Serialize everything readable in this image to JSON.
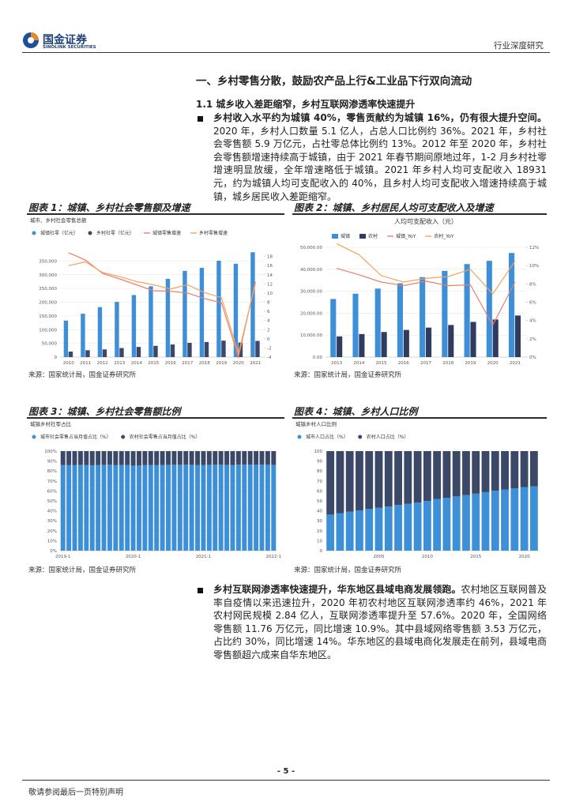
{
  "header": {
    "brand": "国金证券",
    "brand_en": "SINOLINK SECURITIES",
    "report_type": "行业深度研究"
  },
  "section_title": "一、乡村零售分散，鼓励农产品上行&工业品下行双向流动",
  "subsection_title": "1.1 城乡收入差距缩窄，乡村互联网渗透率快速提升",
  "paragraphs": [
    {
      "lead": "乡村收入水平约为城镇 40%，零售贡献约为城镇 16%，仍有很大提升空间。",
      "body": "2020 年，乡村人口数量 5.1 亿人，占总人口比例约 36%。2021 年，乡村社会零售额 5.9 万亿元，占社零总体比例约 13%。2012 年至 2020 年，乡村社会零售额增速持续高于城镇，由于 2021 年春节期间原地过年，1-2 月乡村社零增速明显放缓，全年增速略低于城镇。2021 年乡村人均可支配收入 18931 元，约为城镇人均可支配收入的 40%，且乡村人均可支配收入增速持续高于城镇，城乡居民收入差距缩窄。"
    },
    {
      "lead": "乡村互联网渗透率快速提升，华东地区县域电商发展领跑。",
      "body": "农村地区互联网普及率自疫情以来迅速拉升，2020 年初农村地区互联网渗透率约 46%，2021 年农村网民规模 2.84 亿人，互联网渗透率提升至 57.6%。2020 年，全国网络零售额 11.76 万亿元，同比增速 10.9%。其中县域网络零售额 3.53 万亿元，占比约 30%，同比增速 14%。华东地区的县域电商化发展走在前列，县域电商零售额超六成来自华东地区。"
    }
  ],
  "figures": [
    {
      "title": "图表 1：城镇、乡村社会零售额及增速",
      "source": "来源：国家统计局，国金证券研究所",
      "chart": {
        "type": "bar",
        "subtitle": "城市、乡村社会零售总额",
        "grid": true,
        "categories": [
          "2010",
          "2011",
          "2012",
          "2013",
          "2014",
          "2015",
          "2016",
          "2017",
          "2018",
          "2019",
          "2020",
          "2021"
        ],
        "ylim": [
          0,
          400000
        ],
        "yticks": [
          0,
          {
            "value": 50000,
            "label": "50,000"
          },
          {
            "value": 100000,
            "label": "100,000"
          },
          {
            "value": 150000,
            "label": "150,000"
          },
          {
            "value": 200000,
            "label": "200,000"
          },
          {
            "value": 250000,
            "label": "250,000"
          },
          {
            "value": 300000,
            "label": "300,000"
          },
          {
            "value": 350000,
            "label": "350,000"
          }
        ],
        "y2lim": [
          -4,
          20
        ],
        "y2ticks": [
          -4,
          -2,
          0,
          2,
          4,
          6,
          8,
          10,
          12,
          14,
          16,
          18
        ],
        "series": [
          {
            "name": "城镇社零（亿元）",
            "color": "#3d8fd8",
            "values": [
              133000,
              158000,
              182000,
              201000,
              226000,
              258000,
              285000,
              314000,
              325000,
              351000,
              340000,
              382000
            ]
          },
          {
            "name": "乡村社零（亿元）",
            "color": "#3b4868",
            "values": [
              20000,
              25000,
              28000,
              33000,
              37000,
              41000,
              46000,
              52000,
              55000,
              60000,
              53000,
              59000
            ]
          },
          {
            "name": "城镇零售增速",
            "color": "#ef7d6d",
            "type": "line",
            "axis": "y2",
            "values": [
              18.8,
              17.2,
              14.3,
              13.1,
              11.8,
              10.5,
              10.4,
              10.0,
              8.8,
              7.9,
              -4.0,
              12.5
            ]
          },
          {
            "name": "乡村零售增速",
            "color": "#f5a35a",
            "type": "line",
            "axis": "y2",
            "values": [
              16.0,
              16.8,
              14.5,
              13.6,
              12.5,
              11.8,
              10.9,
              11.8,
              10.1,
              9.0,
              -3.2,
              12.1
            ]
          }
        ]
      }
    },
    {
      "title": "图表 2：城镇、乡村居民人均可支配收入及增速",
      "source": "来源：国家统计局，国金证券研究所",
      "chart": {
        "type": "bar",
        "heading": "人均可支配收入（元）",
        "grid": true,
        "categories": [
          "2013",
          "2014",
          "2015",
          "2016",
          "2017",
          "2018",
          "2019",
          "2020",
          "2021"
        ],
        "ylim": [
          0,
          50000
        ],
        "yticks": [
          {
            "value": 0,
            "label": "0.00"
          },
          {
            "value": 10000,
            "label": "10,000.00"
          },
          {
            "value": 20000,
            "label": "20,000.00"
          },
          {
            "value": 30000,
            "label": "30,000.00"
          },
          {
            "value": 40000,
            "label": "40,000.00"
          },
          {
            "value": 50000,
            "label": "50,000.00"
          }
        ],
        "y2lim": [
          0,
          12
        ],
        "y2ticks": [
          {
            "value": 0,
            "label": "0%"
          },
          {
            "value": 2,
            "label": "2%"
          },
          {
            "value": 4,
            "label": "4%"
          },
          {
            "value": 6,
            "label": "6%"
          },
          {
            "value": 8,
            "label": "8%"
          },
          {
            "value": 10,
            "label": "10%"
          },
          {
            "value": 12,
            "label": "12%"
          }
        ],
        "series": [
          {
            "name": "城镇",
            "color": "#3d8fd8",
            "values": [
              26467,
              28844,
              31195,
              33616,
              36396,
              39251,
              42359,
              43834,
              47412
            ]
          },
          {
            "name": "农村",
            "color": "#2f3c5f",
            "values": [
              9430,
              10489,
              11422,
              12363,
              13432,
              14617,
              16021,
              17131,
              18931
            ]
          },
          {
            "name": "城镇_YoY",
            "color": "#ef7d6d",
            "type": "line",
            "axis": "y2",
            "values": [
              9.7,
              9.0,
              8.2,
              7.8,
              8.3,
              7.8,
              7.9,
              3.5,
              8.2
            ]
          },
          {
            "name": "农村_YoY",
            "color": "#f5a35a",
            "type": "line",
            "axis": "y2",
            "values": [
              12.4,
              11.2,
              8.9,
              8.2,
              8.6,
              8.8,
              9.6,
              6.9,
              10.5
            ]
          }
        ]
      }
    },
    {
      "title": "图表 3：城镇、乡村社会零售额比例",
      "source": "来源：国家统计局，国金证券研究所",
      "chart": {
        "type": "bar",
        "subtitle": "城镇乡村社零占比",
        "stacked": true,
        "grid": true,
        "categories": [
          "2019-1",
          null,
          null,
          null,
          null,
          null,
          null,
          null,
          null,
          null,
          null,
          null,
          "2020-1",
          null,
          null,
          null,
          null,
          null,
          null,
          null,
          null,
          null,
          null,
          null,
          "2021-1",
          null,
          null,
          null,
          null,
          null,
          null,
          null,
          null,
          null,
          null,
          null,
          "2022-1"
        ],
        "ylim": [
          0,
          100
        ],
        "yticks": [
          {
            "value": 0,
            "label": "0%"
          },
          {
            "value": 10,
            "label": "10%"
          },
          {
            "value": 20,
            "label": "20%"
          },
          {
            "value": 30,
            "label": "30%"
          },
          {
            "value": 40,
            "label": "40%"
          },
          {
            "value": 50,
            "label": "50%"
          },
          {
            "value": 60,
            "label": "60%"
          },
          {
            "value": 70,
            "label": "70%"
          },
          {
            "value": 80,
            "label": "80%"
          },
          {
            "value": 90,
            "label": "90%"
          },
          {
            "value": 100,
            "label": "100%"
          }
        ],
        "series": [
          {
            "name": "城市社会零售占当月值占比（%）",
            "color": "#3d8fd8",
            "values": [
              86.0,
              85.9,
              86.1,
              86.2,
              86.0,
              85.8,
              86.1,
              86.2,
              86.3,
              86.1,
              86.0,
              85.9,
              85.4,
              85.6,
              85.9,
              86.0,
              86.1,
              86.0,
              86.2,
              86.3,
              86.3,
              86.4,
              86.2,
              86.0,
              86.1,
              86.2,
              86.3,
              86.3,
              86.2,
              86.1,
              86.3,
              86.4,
              86.4,
              86.5,
              86.4,
              86.3,
              86.2
            ]
          },
          {
            "name": "农村社会零售占当月值占比（%）",
            "color": "#3b4868",
            "values": [
              14.0,
              14.1,
              13.9,
              13.8,
              14.0,
              14.2,
              13.9,
              13.8,
              13.7,
              13.9,
              14.0,
              14.1,
              14.6,
              14.4,
              14.1,
              14.0,
              13.9,
              14.0,
              13.8,
              13.7,
              13.7,
              13.6,
              13.8,
              14.0,
              13.9,
              13.8,
              13.7,
              13.7,
              13.8,
              13.9,
              13.7,
              13.6,
              13.6,
              13.5,
              13.6,
              13.7,
              13.8
            ]
          }
        ]
      }
    },
    {
      "title": "图表 4：城镇、乡村人口比例",
      "source": "来源：国家统计局，国金证券研究所",
      "chart": {
        "type": "bar",
        "subtitle": "城镇乡村人口比例",
        "stacked": true,
        "grid": false,
        "categories": [
          null,
          null,
          null,
          null,
          null,
          "2005",
          null,
          null,
          null,
          null,
          "2010",
          null,
          null,
          null,
          null,
          "2015",
          null,
          null,
          null,
          null,
          "2020",
          null
        ],
        "ylim": [
          0,
          100
        ],
        "yticks": [
          0,
          10,
          20,
          30,
          40,
          50,
          60,
          70,
          80,
          90,
          100
        ],
        "series": [
          {
            "name": "城市人口占比（%）",
            "color": "#3d8fd8",
            "values": [
              36.2,
              37.7,
              39.1,
              40.5,
              41.8,
              43.0,
              44.3,
              45.9,
              47.0,
              48.3,
              49.9,
              51.8,
              53.1,
              54.5,
              55.8,
              57.3,
              58.8,
              60.2,
              61.5,
              62.7,
              63.9,
              64.7
            ]
          },
          {
            "name": "农村人口占比（%）",
            "color": "#3b4868",
            "values": [
              63.8,
              62.3,
              60.9,
              59.5,
              58.2,
              57.0,
              55.7,
              54.1,
              53.0,
              51.7,
              50.1,
              48.2,
              46.9,
              45.5,
              44.2,
              42.7,
              41.2,
              39.8,
              38.5,
              37.3,
              36.1,
              35.3
            ]
          }
        ]
      }
    }
  ],
  "footer": {
    "page": "- 5 -",
    "disclaimer": "敬请参阅最后一页特别声明"
  }
}
